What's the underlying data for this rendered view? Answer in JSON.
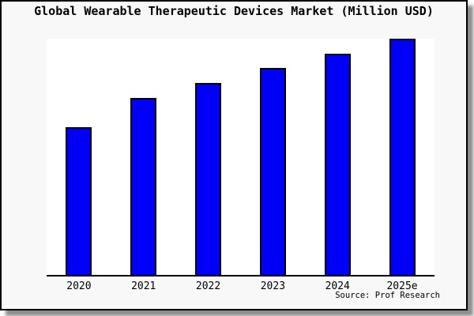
{
  "figure": {
    "source_label": "Source: Prof Research"
  },
  "chart_data": {
    "type": "bar",
    "title": "Global Wearable Therapeutic Devices Market (Million USD)",
    "categories": [
      "2020",
      "2021",
      "2022",
      "2023",
      "2024",
      "2025e"
    ],
    "values": [
      188,
      225,
      244,
      263,
      281,
      300
    ],
    "values_note": "relative heights estimated from pixels; chart shows no y-axis tick labels or gridlines",
    "xlabel": "",
    "ylabel": "",
    "ylim": [
      0,
      300
    ],
    "grid": false,
    "legend": false,
    "y_axis_visible": false,
    "annotations": [
      "Source: Prof Research"
    ]
  },
  "colors": {
    "bar_fill": "#0000fa",
    "bar_edge": "#000000",
    "figure_bg": "#f8f8f8",
    "plot_bg": "#ffffff",
    "border": "#000000",
    "text": "#000000"
  }
}
